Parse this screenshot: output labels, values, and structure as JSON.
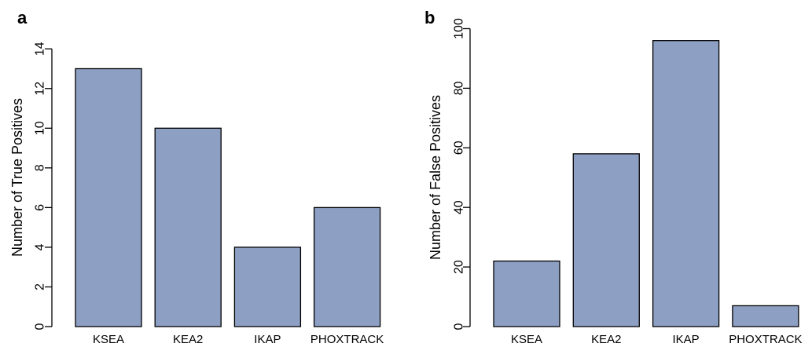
{
  "chart_data": [
    {
      "type": "bar",
      "panel_label": "a",
      "categories": [
        "KSEA",
        "KEA2",
        "IKAP",
        "PHOXTRACK"
      ],
      "values": [
        13,
        10,
        4,
        6
      ],
      "title": "",
      "xlabel": "",
      "ylabel": "Number of True Positives",
      "ylim": [
        0,
        15
      ],
      "yticks": [
        0,
        2,
        4,
        6,
        8,
        10,
        12,
        14
      ],
      "grid": false,
      "bar_color": "#8d9fc3"
    },
    {
      "type": "bar",
      "panel_label": "b",
      "categories": [
        "KSEA",
        "KEA2",
        "IKAP",
        "PHOXTRACK"
      ],
      "values": [
        22,
        58,
        96,
        7
      ],
      "title": "",
      "xlabel": "",
      "ylabel": "Number of False Positives",
      "ylim": [
        0,
        100
      ],
      "yticks": [
        0,
        20,
        40,
        60,
        80,
        100
      ],
      "grid": false,
      "bar_color": "#8d9fc3"
    }
  ]
}
